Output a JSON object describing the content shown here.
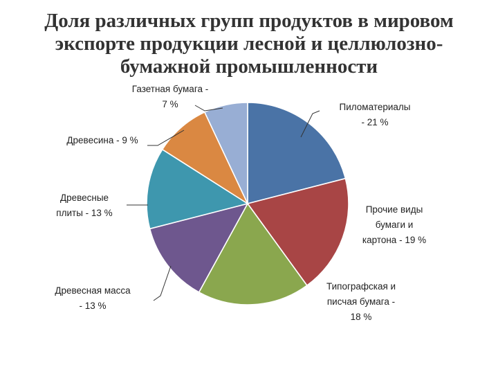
{
  "chart_data": {
    "type": "pie",
    "title_lines": [
      "Доля различных групп продуктов в мировом",
      "экспорте продукции лесной и целлюлозно-",
      "бумажной промышленности"
    ],
    "slices": [
      {
        "name": "Пиломатериалы",
        "value": 21,
        "color": "#4A73A6",
        "label_lines": [
          "Пиломатериалы",
          "- 21 %"
        ]
      },
      {
        "name": "Прочие виды бумаги и картона",
        "value": 19,
        "color": "#A84545",
        "label_lines": [
          "Прочие виды",
          "бумаги и",
          "картона - 19 %"
        ]
      },
      {
        "name": "Типографская и писчая бумага",
        "value": 18,
        "color": "#8AA74E",
        "label_lines": [
          "Типографская и",
          "писчая бумага -",
          "18 %"
        ]
      },
      {
        "name": "Древесная масса",
        "value": 13,
        "color": "#6E578E",
        "label_lines": [
          "Древесная масса",
          "- 13 %"
        ]
      },
      {
        "name": "Древесные плиты",
        "value": 13,
        "color": "#3E97AE",
        "label_lines": [
          "Древесные",
          "плиты - 13 %"
        ]
      },
      {
        "name": "Древесина",
        "value": 9,
        "color": "#DA8842",
        "label_lines": [
          "Древесина - 9 %"
        ]
      },
      {
        "name": "Газетная бумага",
        "value": 7,
        "color": "#98AED4",
        "label_lines": [
          "Газетная бумага -",
          "7 %"
        ]
      }
    ]
  }
}
